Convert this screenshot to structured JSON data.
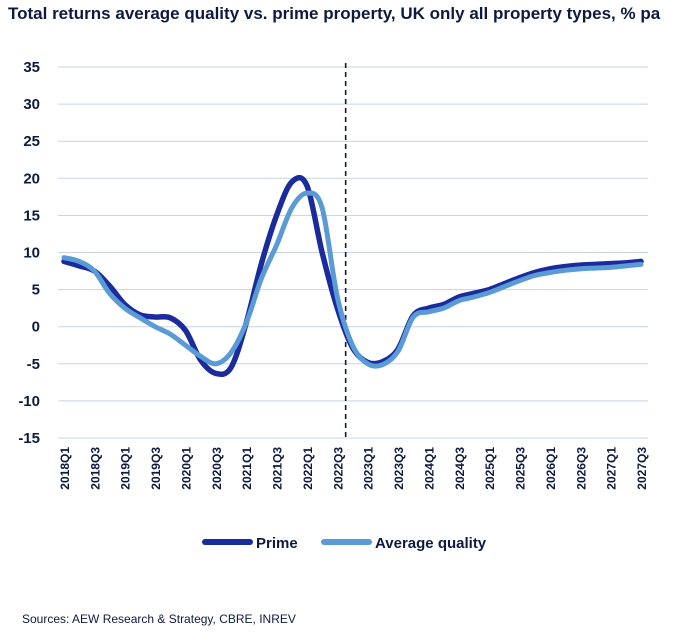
{
  "title": "Total returns average quality vs. prime property, UK only all property types, % pa",
  "source": "Sources: AEW Research & Strategy, CBRE, INREV",
  "chart_data": {
    "type": "line",
    "title": "Total returns average quality vs. prime property, UK only all property types, % pa",
    "xlabel": "",
    "ylabel": "",
    "ylim": [
      -15,
      35
    ],
    "yticks": [
      35,
      30,
      25,
      20,
      15,
      10,
      5,
      0,
      -5,
      -10,
      -15
    ],
    "grid": true,
    "legend_position": "bottom-center",
    "forecast_divider_after": "2022Q3",
    "x": [
      "2018Q1",
      "2018Q2",
      "2018Q3",
      "2018Q4",
      "2019Q1",
      "2019Q2",
      "2019Q3",
      "2019Q4",
      "2020Q1",
      "2020Q2",
      "2020Q3",
      "2020Q4",
      "2021Q1",
      "2021Q2",
      "2021Q3",
      "2021Q4",
      "2022Q1",
      "2022Q2",
      "2022Q3",
      "2022Q4",
      "2023Q1",
      "2023Q2",
      "2023Q3",
      "2023Q4",
      "2024Q1",
      "2024Q2",
      "2024Q3",
      "2024Q4",
      "2025Q1",
      "2025Q2",
      "2025Q3",
      "2025Q4",
      "2026Q1",
      "2026Q2",
      "2026Q3",
      "2026Q4",
      "2027Q1",
      "2027Q2",
      "2027Q3"
    ],
    "xtick_labels": [
      "2018Q1",
      "2018Q3",
      "2019Q1",
      "2019Q3",
      "2020Q1",
      "2020Q3",
      "2021Q1",
      "2021Q3",
      "2022Q1",
      "2022Q3",
      "2023Q1",
      "2023Q3",
      "2024Q1",
      "2024Q3",
      "2025Q1",
      "2025Q3",
      "2026Q1",
      "2026Q3",
      "2027Q1",
      "2027Q3"
    ],
    "series": [
      {
        "name": "Prime",
        "color": "#1a2b9c",
        "values": [
          8.8,
          8.2,
          7.5,
          5.5,
          3.0,
          1.6,
          1.3,
          1.2,
          -0.5,
          -4.5,
          -6.3,
          -5.5,
          0.5,
          8.5,
          15.0,
          19.5,
          19.0,
          10.0,
          2.5,
          -2.8,
          -4.8,
          -4.7,
          -3.0,
          1.5,
          2.5,
          3.0,
          4.0,
          4.5,
          5.0,
          5.8,
          6.6,
          7.3,
          7.8,
          8.1,
          8.3,
          8.4,
          8.5,
          8.6,
          8.8
        ]
      },
      {
        "name": "Average quality",
        "color": "#5b9bd5",
        "values": [
          9.3,
          8.8,
          7.5,
          4.5,
          2.5,
          1.2,
          0.0,
          -1.0,
          -2.5,
          -4.0,
          -5.0,
          -3.5,
          0.5,
          6.5,
          11.0,
          16.0,
          18.0,
          16.0,
          4.0,
          -2.5,
          -5.0,
          -5.1,
          -3.3,
          1.3,
          2.0,
          2.5,
          3.5,
          4.0,
          4.6,
          5.4,
          6.2,
          6.9,
          7.3,
          7.6,
          7.8,
          7.9,
          8.0,
          8.2,
          8.4
        ]
      }
    ]
  }
}
